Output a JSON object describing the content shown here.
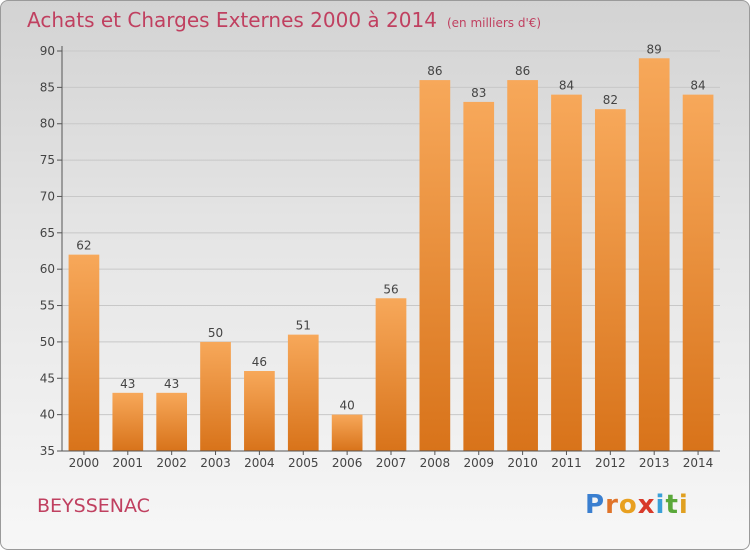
{
  "title": "Achats et Charges Externes 2000 à 2014",
  "unit": "(en milliers d'€)",
  "place": "BEYSSENAC",
  "brand": {
    "letters": [
      "P",
      "r",
      "o",
      "x",
      "i",
      "t",
      "i"
    ],
    "colors": [
      "#3a7fd0",
      "#e0742a",
      "#e8a020",
      "#d83a2a",
      "#3aa0d8",
      "#5aa83a",
      "#e0a020"
    ]
  },
  "colors": {
    "bar_light": "#f7a85a",
    "bar_dark": "#d8731a",
    "text": "#c04060"
  },
  "chart_data": {
    "type": "bar",
    "categories": [
      "2000",
      "2001",
      "2002",
      "2003",
      "2004",
      "2005",
      "2006",
      "2007",
      "2008",
      "2009",
      "2010",
      "2011",
      "2012",
      "2013",
      "2014"
    ],
    "values": [
      62,
      43,
      43,
      50,
      46,
      51,
      40,
      56,
      86,
      83,
      86,
      84,
      82,
      89,
      84
    ],
    "yticks": [
      35,
      40,
      45,
      50,
      55,
      60,
      65,
      70,
      75,
      80,
      85,
      90
    ],
    "ylim": [
      35,
      90
    ],
    "grid": true,
    "data_labels": true
  }
}
